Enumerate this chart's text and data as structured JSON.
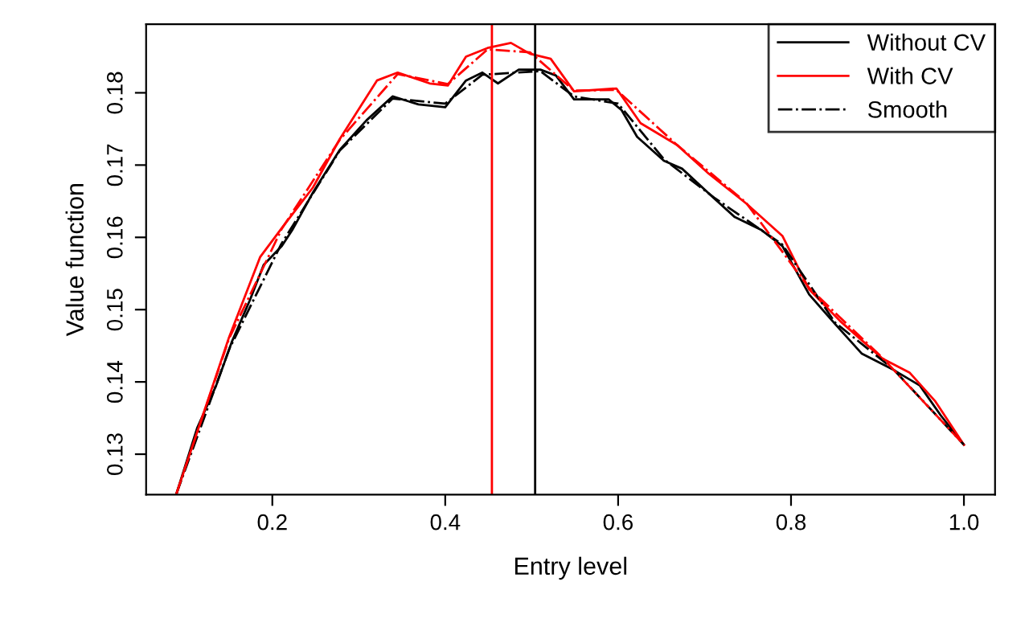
{
  "chart_data": {
    "type": "line",
    "xlabel": "Entry level",
    "ylabel": "Value function",
    "xlim": [
      0.054,
      1.036
    ],
    "ylim": [
      0.1244,
      0.1895
    ],
    "xticks": [
      0.2,
      0.4,
      0.6,
      0.8,
      {
        "value": 1.0,
        "label": "1.0"
      }
    ],
    "yticks": [
      0.13,
      0.14,
      0.15,
      0.16,
      0.17,
      0.18
    ],
    "grid": false,
    "legend": "top right",
    "marker": "none",
    "series": [
      {
        "name": "Without CV",
        "color": "#000000",
        "line_style": "solid",
        "x": [
          0.089,
          0.113,
          0.135,
          0.153,
          0.174,
          0.19,
          0.211,
          0.223,
          0.247,
          0.278,
          0.309,
          0.339,
          0.369,
          0.4,
          0.424,
          0.443,
          0.461,
          0.485,
          0.51,
          0.528,
          0.549,
          0.589,
          0.604,
          0.622,
          0.653,
          0.674,
          0.711,
          0.735,
          0.766,
          0.79,
          0.821,
          0.851,
          0.882,
          0.918,
          0.949,
          0.973,
          1.0
        ],
        "values": [
          0.1245,
          0.1336,
          0.1395,
          0.1455,
          0.1513,
          0.1562,
          0.1588,
          0.161,
          0.1662,
          0.1721,
          0.1762,
          0.1795,
          0.1784,
          0.178,
          0.1817,
          0.1828,
          0.1813,
          0.1832,
          0.1832,
          0.1824,
          0.1791,
          0.1791,
          0.1776,
          0.1739,
          0.1706,
          0.1695,
          0.1654,
          0.1628,
          0.161,
          0.1588,
          0.1521,
          0.148,
          0.1439,
          0.1417,
          0.1395,
          0.1354,
          0.1313
        ]
      },
      {
        "name": "With CV",
        "color": "#ff0000",
        "line_style": "solid",
        "x": [
          0.089,
          0.15,
          0.186,
          0.211,
          0.247,
          0.278,
          0.321,
          0.345,
          0.382,
          0.403,
          0.424,
          0.449,
          0.476,
          0.498,
          0.522,
          0.549,
          0.598,
          0.626,
          0.668,
          0.705,
          0.748,
          0.79,
          0.821,
          0.857,
          0.906,
          0.937,
          0.967,
          1.0
        ],
        "values": [
          0.1245,
          0.1462,
          0.1573,
          0.1613,
          0.1669,
          0.1736,
          0.1817,
          0.1828,
          0.1813,
          0.181,
          0.185,
          0.1862,
          0.1869,
          0.1854,
          0.1847,
          0.1802,
          0.1806,
          0.1758,
          0.1728,
          0.1688,
          0.1647,
          0.1602,
          0.1528,
          0.1484,
          0.1432,
          0.1413,
          0.1373,
          0.1313
        ]
      },
      {
        "name": "Smooth",
        "color": "#000000",
        "line_style": "dashdot",
        "x": [
          0.089,
          0.15,
          0.21,
          0.278,
          0.339,
          0.4,
          0.443,
          0.51,
          0.549,
          0.6,
          0.653,
          0.711,
          0.79,
          0.851,
          0.918,
          1.0
        ],
        "values": [
          0.1245,
          0.1445,
          0.159,
          0.172,
          0.1792,
          0.1785,
          0.1825,
          0.183,
          0.1795,
          0.1785,
          0.1708,
          0.1655,
          0.159,
          0.1482,
          0.1418,
          0.1313
        ]
      },
      {
        "color": "#ff0000",
        "line_style": "dashdot",
        "x": [
          0.089,
          0.15,
          0.211,
          0.278,
          0.345,
          0.403,
          0.449,
          0.498,
          0.549,
          0.598,
          0.668,
          0.748,
          0.821,
          0.906,
          1.0
        ],
        "values": [
          0.1245,
          0.146,
          0.1612,
          0.1735,
          0.1826,
          0.1812,
          0.186,
          0.1856,
          0.1803,
          0.1804,
          0.1728,
          0.1648,
          0.153,
          0.1433,
          0.1313
        ]
      }
    ],
    "ref_lines": [
      {
        "axis": "x",
        "value": 0.454,
        "color": "#ff0000"
      },
      {
        "axis": "x",
        "value": 0.504,
        "color": "#000000"
      }
    ]
  }
}
